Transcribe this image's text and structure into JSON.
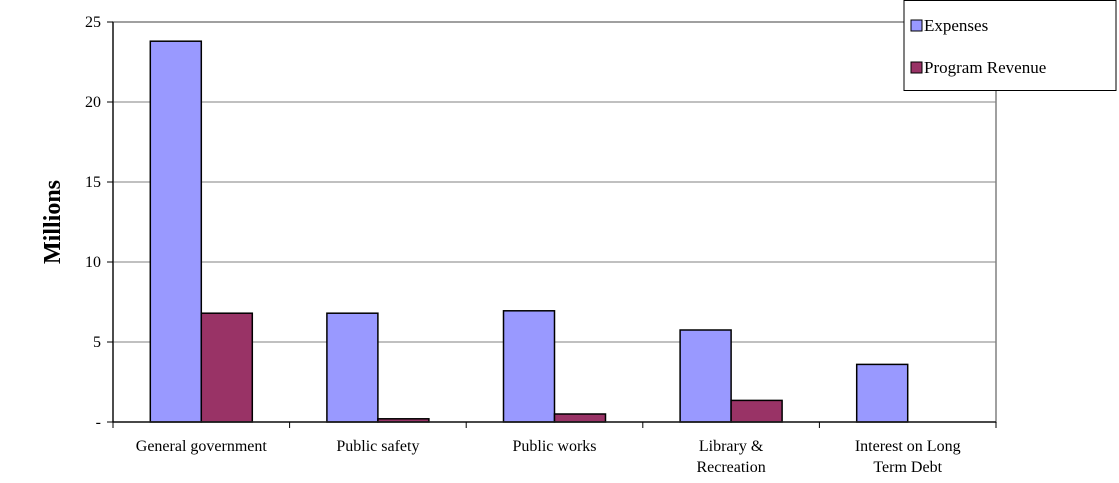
{
  "chart_data": {
    "type": "bar",
    "categories": [
      [
        "General government"
      ],
      [
        "Public safety"
      ],
      [
        "Public works"
      ],
      [
        "Library &",
        "Recreation"
      ],
      [
        "Interest on Long",
        "Term Debt"
      ]
    ],
    "series": [
      {
        "name": "Expenses",
        "values": [
          23.8,
          6.8,
          6.95,
          5.75,
          3.6
        ],
        "color": "#9999ff"
      },
      {
        "name": "Program Revenue",
        "values": [
          6.8,
          0.2,
          0.5,
          1.35,
          0
        ],
        "color": "#993366"
      }
    ],
    "ylabel": "Millions",
    "xlabel": "",
    "ylim": [
      0,
      25
    ],
    "yticks": [
      0,
      5,
      10,
      15,
      20,
      25
    ],
    "ytick_labels": [
      "-",
      "5",
      "10",
      "15",
      "20",
      "25"
    ],
    "grid": true,
    "legend_position": "top-right"
  }
}
